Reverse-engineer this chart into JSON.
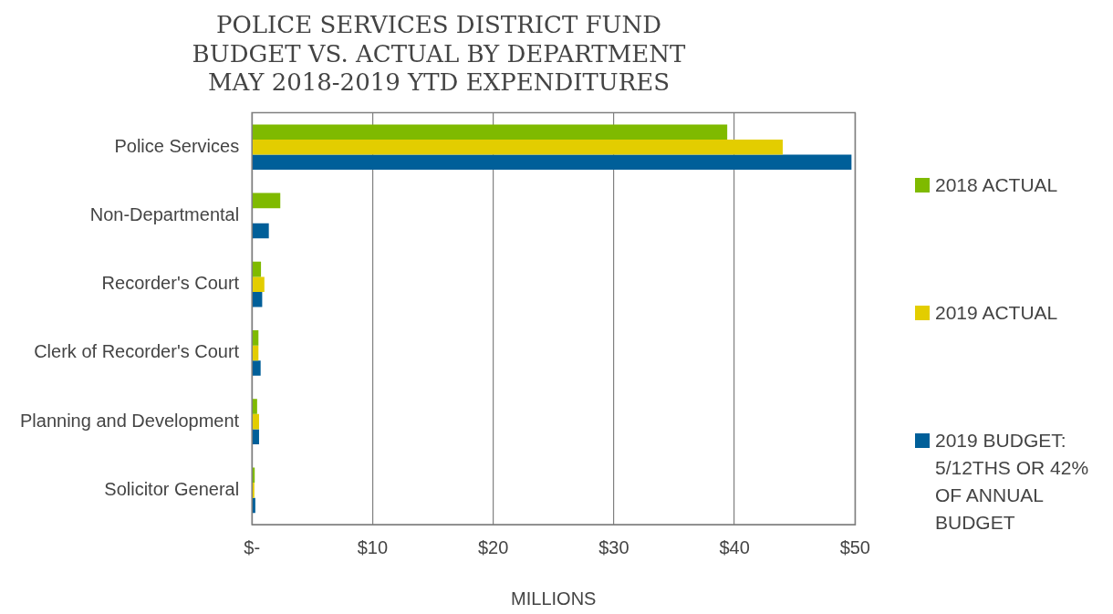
{
  "chart_data": {
    "type": "bar",
    "orientation": "horizontal",
    "title": "POLICE SERVICES DISTRICT FUND\nBUDGET VS. ACTUAL BY DEPARTMENT\nMAY 2018-2019 YTD EXPENDITURES",
    "xlabel": "MILLIONS",
    "categories": [
      "Police Services",
      "Non-Departmental",
      "Recorder's Court",
      "Clerk of Recorder's Court",
      "Planning and Development",
      "Solicitor General"
    ],
    "series": [
      {
        "name": "2018 ACTUAL",
        "color": "#7fba00",
        "values": [
          39.4,
          2.35,
          0.75,
          0.54,
          0.43,
          0.23
        ]
      },
      {
        "name": "2019 ACTUAL",
        "color": "#e3cd00",
        "values": [
          44.0,
          null,
          1.03,
          0.54,
          0.59,
          0.2
        ]
      },
      {
        "name": "2019 BUDGET: 5/12THS OR 42% OF ANNUAL BUDGET",
        "color": "#005f99",
        "values": [
          49.7,
          1.4,
          0.85,
          0.72,
          0.59,
          0.28
        ]
      }
    ],
    "xlim": [
      0,
      50
    ],
    "xticks": [
      {
        "value": 0,
        "label": "$-"
      },
      {
        "value": 10,
        "label": "$10"
      },
      {
        "value": 20,
        "label": "$20"
      },
      {
        "value": 30,
        "label": "$30"
      },
      {
        "value": 40,
        "label": "$40"
      },
      {
        "value": 50,
        "label": "$50"
      }
    ],
    "grid": "x",
    "legend": "right"
  }
}
